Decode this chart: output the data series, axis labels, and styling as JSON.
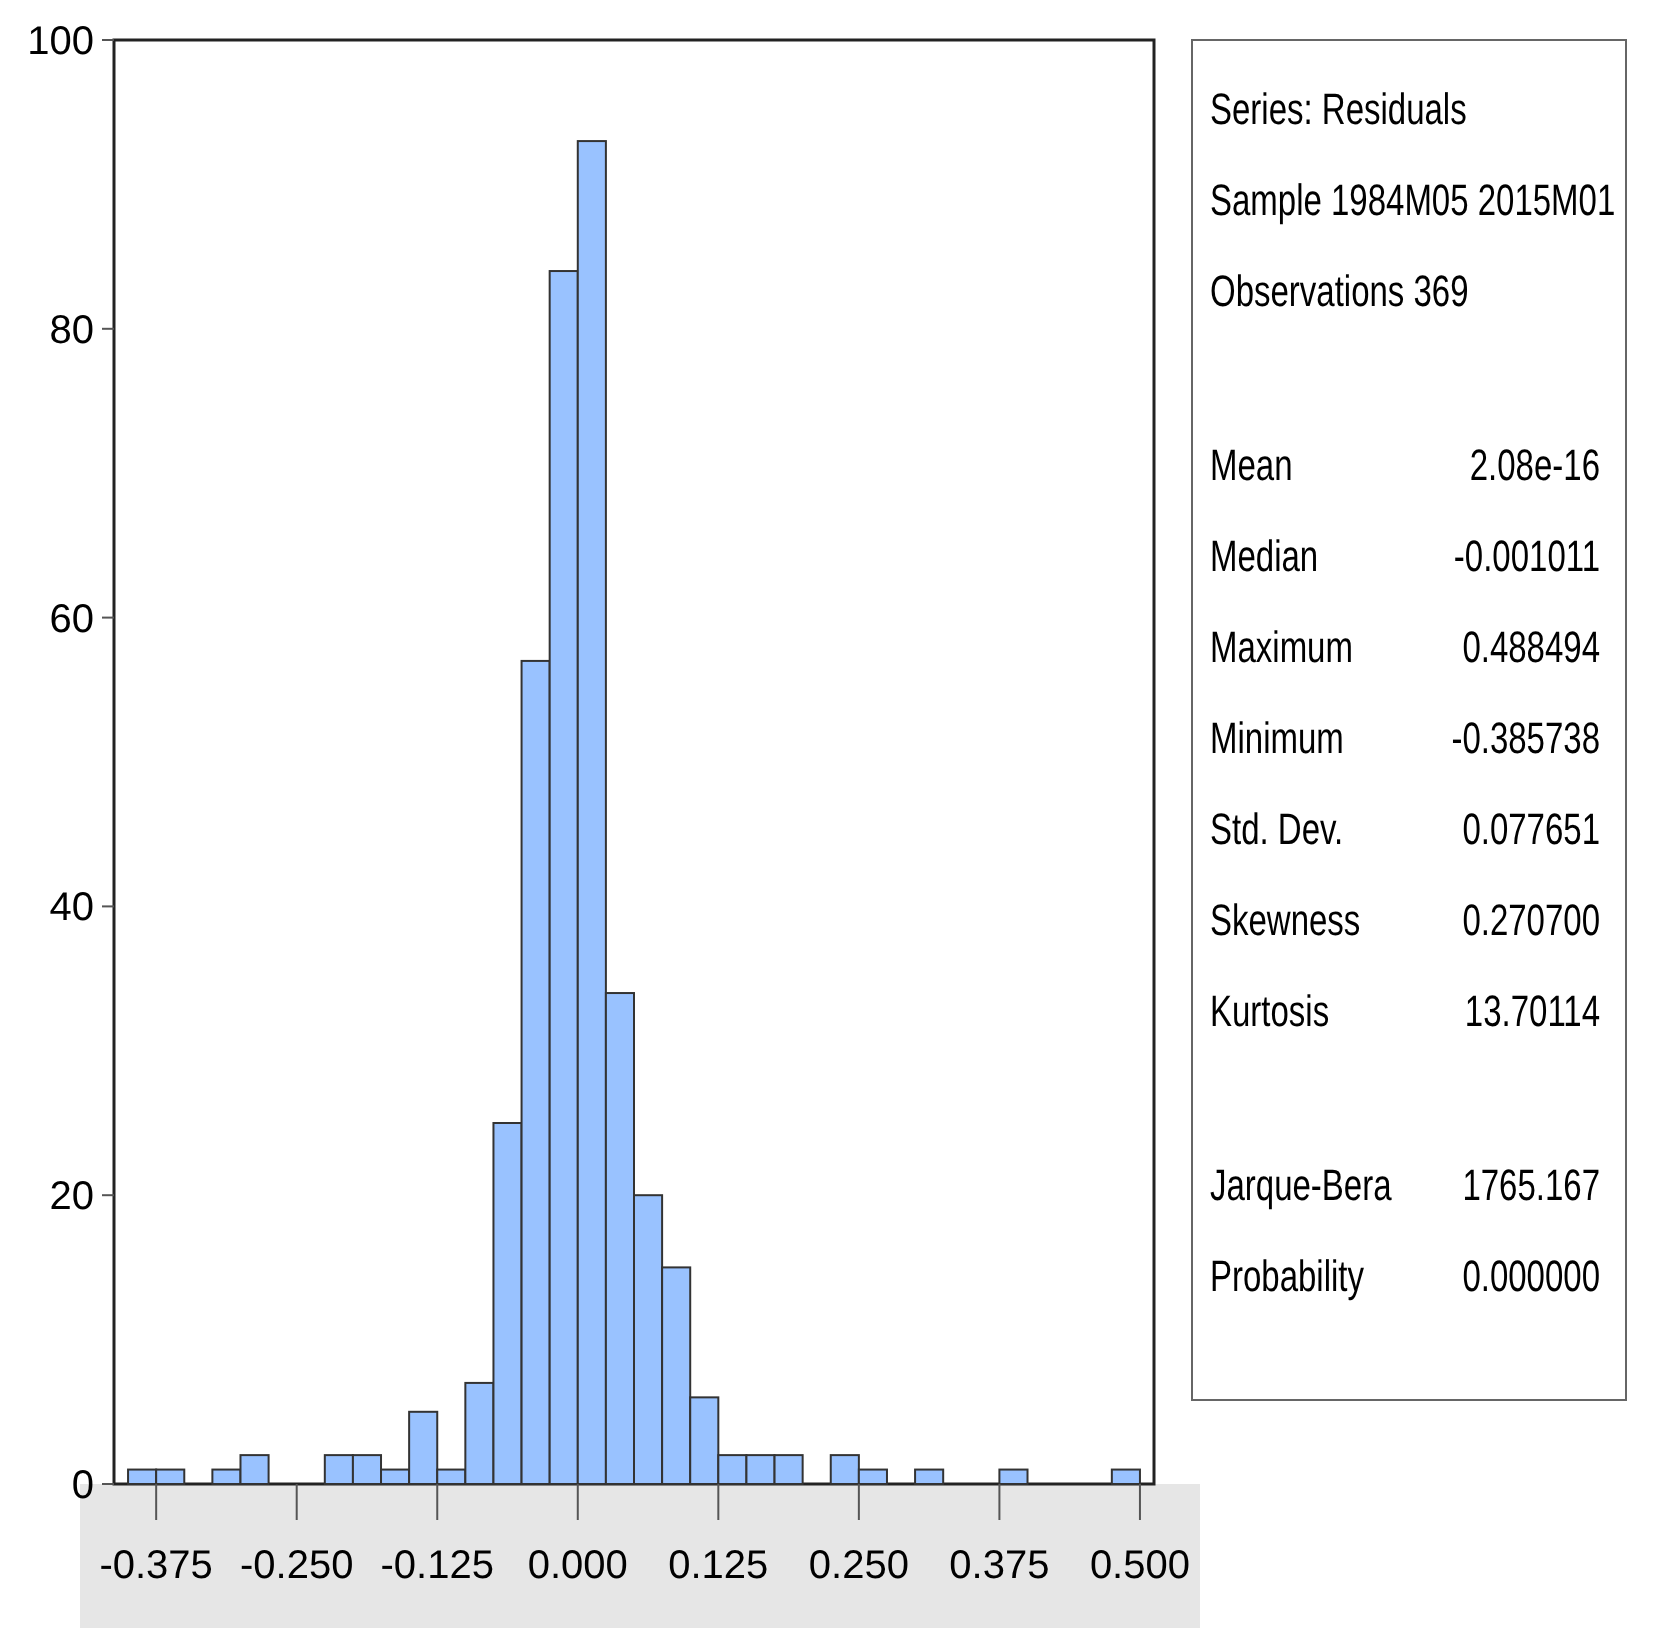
{
  "chart_data": {
    "type": "histogram",
    "bins": [
      -0.4,
      -0.375,
      -0.35,
      -0.325,
      -0.3,
      -0.275,
      -0.25,
      -0.225,
      -0.2,
      -0.175,
      -0.15,
      -0.125,
      -0.1,
      -0.075,
      -0.05,
      -0.025,
      0,
      0.025,
      0.05,
      0.075,
      0.1,
      0.125,
      0.15,
      0.175,
      0.2,
      0.225,
      0.25,
      0.275,
      0.3,
      0.325,
      0.35,
      0.375,
      0.4,
      0.425,
      0.45,
      0.475,
      0.5
    ],
    "values": [
      1,
      1,
      0,
      1,
      2,
      0,
      0,
      2,
      2,
      1,
      5,
      1,
      7,
      25,
      57,
      84,
      93,
      34,
      20,
      15,
      6,
      2,
      2,
      2,
      0,
      2,
      1,
      0,
      1,
      0,
      0,
      1,
      0,
      0,
      0,
      1
    ],
    "color": "#99c2ff",
    "xlim": [
      -0.4125,
      0.5125
    ],
    "xticks": [
      {
        "value": -0.375,
        "label": "-0.375"
      },
      {
        "value": -0.25,
        "label": "-0.250"
      },
      {
        "value": -0.125,
        "label": "-0.125"
      },
      {
        "value": 0,
        "label": "0.000"
      },
      {
        "value": 0.125,
        "label": "0.125"
      },
      {
        "value": 0.25,
        "label": "0.250"
      },
      {
        "value": 0.375,
        "label": "0.375"
      },
      {
        "value": 0.5,
        "label": "0.500"
      }
    ],
    "ylim": [
      0,
      100
    ],
    "yticks": [
      0,
      20,
      40,
      60,
      80,
      100
    ],
    "grid": false,
    "annotations": [
      "Series: Residuals",
      "Sample 1984M05 2015M01",
      "Observations 369",
      "Mean 2.08e-16",
      "Median -0.001011",
      "Maximum 0.488494",
      "Minimum -0.385738",
      "Std. Dev. 0.077651",
      "Skewness 0.270700",
      "Kurtosis 13.70114",
      "Jarque-Bera 1765.167",
      "Probability 0.000000"
    ]
  }
}
